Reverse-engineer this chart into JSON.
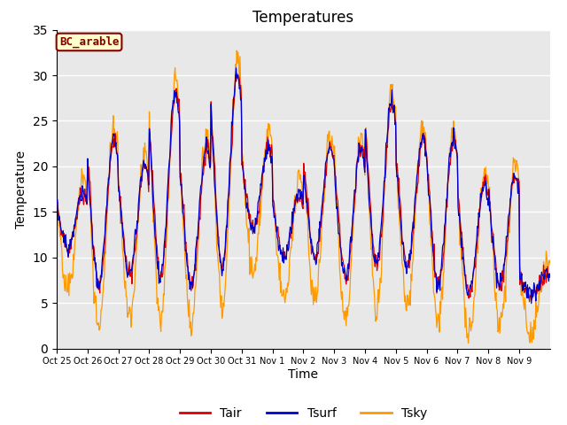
{
  "title": "Temperatures",
  "xlabel": "Time",
  "ylabel": "Temperature",
  "ylim": [
    0,
    35
  ],
  "yticks": [
    0,
    5,
    10,
    15,
    20,
    25,
    30,
    35
  ],
  "label_box_text": "BC_arable",
  "label_box_bg": "#ffffcc",
  "label_box_edge": "#880000",
  "line_colors": {
    "Tair": "#dd0000",
    "Tsurf": "#0000cc",
    "Tsky": "#ff9900"
  },
  "background_color": "#e8e8e8",
  "tick_labels": [
    "Oct 25",
    "Oct 26",
    "Oct 27",
    "Oct 28",
    "Oct 29",
    "Oct 30",
    "Oct 31",
    "Nov 1",
    "Nov 2",
    "Nov 3",
    "Nov 4",
    "Nov 5",
    "Nov 6",
    "Nov 7",
    "Nov 8",
    "Nov 9"
  ],
  "n_days": 16,
  "pts_per_day": 48,
  "day_peaks": [
    17,
    23,
    20,
    28,
    22,
    30,
    22,
    17,
    22,
    22,
    27,
    23,
    23,
    18,
    19,
    8
  ],
  "day_troughs": [
    11,
    7,
    8,
    8,
    7,
    9,
    13,
    10,
    10,
    8,
    9,
    9,
    7,
    6,
    7,
    6
  ],
  "sky_extra_amp": 3.0,
  "figsize": [
    6.4,
    4.8
  ],
  "dpi": 100
}
